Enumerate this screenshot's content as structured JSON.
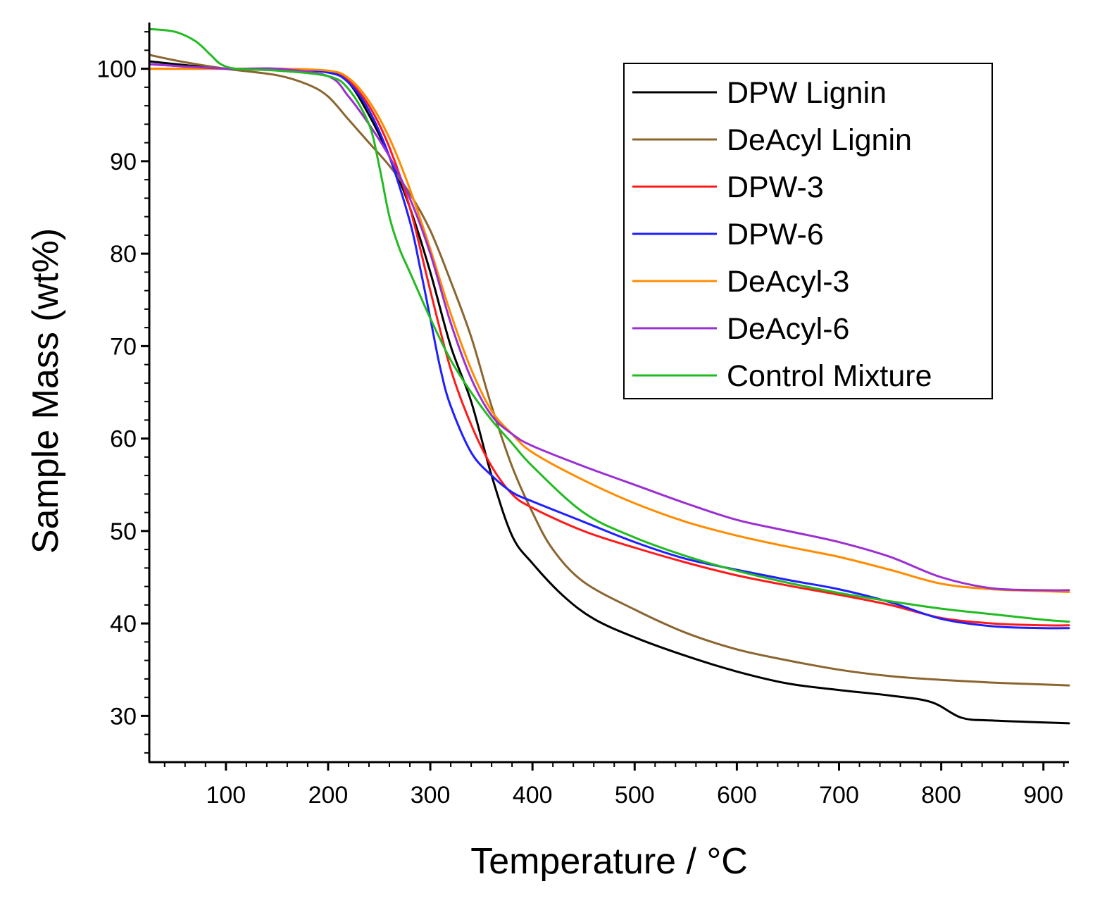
{
  "chart_data": {
    "type": "line",
    "title": "",
    "xlabel": "Temperature / °C",
    "ylabel": "Sample Mass (wt%)",
    "xlim": [
      25,
      925
    ],
    "ylim": [
      25,
      105
    ],
    "xticks": [
      100,
      200,
      300,
      400,
      500,
      600,
      700,
      800,
      900
    ],
    "yticks": [
      30,
      40,
      50,
      60,
      70,
      80,
      90,
      100
    ],
    "xtick_labels": [
      "100",
      "200",
      "300",
      "400",
      "500",
      "600",
      "700",
      "800",
      "900"
    ],
    "ytick_labels": [
      "30",
      "40",
      "50",
      "60",
      "70",
      "80",
      "90",
      "100"
    ],
    "legend_position": "top-right",
    "grid": false,
    "series": [
      {
        "name": "DPW Lignin",
        "color": "#000000",
        "x": [
          25,
          100,
          150,
          200,
          220,
          240,
          260,
          280,
          300,
          320,
          340,
          360,
          380,
          400,
          430,
          460,
          500,
          550,
          600,
          650,
          700,
          750,
          790,
          820,
          850,
          900,
          925
        ],
        "y": [
          100.8,
          100.0,
          100.0,
          99.6,
          98.5,
          95.0,
          90.5,
          85.0,
          78.0,
          70.0,
          64.0,
          56.0,
          49.5,
          46.5,
          43.0,
          40.5,
          38.5,
          36.5,
          34.8,
          33.5,
          32.8,
          32.2,
          31.5,
          29.8,
          29.5,
          29.3,
          29.2
        ]
      },
      {
        "name": "DeAcyl Lignin",
        "color": "#8B6530",
        "x": [
          25,
          60,
          100,
          150,
          180,
          200,
          220,
          240,
          260,
          280,
          300,
          320,
          340,
          360,
          380,
          400,
          420,
          450,
          500,
          550,
          600,
          650,
          700,
          750,
          800,
          850,
          900,
          925
        ],
        "y": [
          101.5,
          100.7,
          100.0,
          99.3,
          98.3,
          97.0,
          94.5,
          92.0,
          89.5,
          86.5,
          82.5,
          77.0,
          71.0,
          63.5,
          57.0,
          52.0,
          48.0,
          44.5,
          41.5,
          39.0,
          37.2,
          36.0,
          35.0,
          34.3,
          33.9,
          33.6,
          33.4,
          33.3
        ]
      },
      {
        "name": "DPW-3",
        "color": "#FF1A1A",
        "x": [
          25,
          100,
          150,
          200,
          220,
          240,
          260,
          280,
          300,
          320,
          340,
          360,
          380,
          400,
          450,
          500,
          550,
          600,
          650,
          700,
          750,
          800,
          850,
          900,
          925
        ],
        "y": [
          100.0,
          100.0,
          100.0,
          99.7,
          98.7,
          96.0,
          91.5,
          85.0,
          76.0,
          67.5,
          61.5,
          57.0,
          54.0,
          52.5,
          50.0,
          48.2,
          46.6,
          45.2,
          44.1,
          43.1,
          42.0,
          40.6,
          40.0,
          39.8,
          39.8
        ]
      },
      {
        "name": "DPW-6",
        "color": "#1F1FFF",
        "x": [
          25,
          100,
          150,
          200,
          220,
          240,
          260,
          280,
          290,
          300,
          310,
          320,
          340,
          360,
          380,
          400,
          450,
          500,
          550,
          600,
          650,
          700,
          750,
          800,
          850,
          900,
          925
        ],
        "y": [
          100.5,
          100.0,
          100.0,
          99.6,
          98.5,
          95.5,
          90.5,
          83.5,
          78.5,
          73.0,
          67.5,
          63.5,
          58.5,
          56.0,
          54.2,
          53.2,
          51.0,
          48.8,
          47.0,
          45.8,
          44.7,
          43.7,
          42.3,
          40.5,
          39.7,
          39.5,
          39.5
        ]
      },
      {
        "name": "DeAcyl-3",
        "color": "#FF8C00",
        "x": [
          25,
          100,
          150,
          200,
          220,
          240,
          260,
          280,
          300,
          320,
          340,
          360,
          380,
          400,
          450,
          500,
          550,
          600,
          650,
          700,
          750,
          800,
          850,
          900,
          925
        ],
        "y": [
          100.0,
          100.0,
          100.0,
          99.8,
          99.0,
          96.5,
          92.5,
          87.0,
          80.5,
          73.5,
          67.5,
          63.0,
          60.5,
          58.5,
          55.5,
          53.0,
          51.0,
          49.5,
          48.3,
          47.2,
          45.8,
          44.3,
          43.7,
          43.5,
          43.4
        ]
      },
      {
        "name": "DeAcyl-6",
        "color": "#9B30D0",
        "x": [
          25,
          100,
          150,
          200,
          220,
          240,
          260,
          280,
          300,
          320,
          340,
          360,
          380,
          400,
          450,
          500,
          550,
          600,
          650,
          700,
          750,
          800,
          850,
          900,
          925
        ],
        "y": [
          100.5,
          100.0,
          100.0,
          99.2,
          97.0,
          94.0,
          90.5,
          86.0,
          80.0,
          72.5,
          66.5,
          62.5,
          60.5,
          59.2,
          57.0,
          55.0,
          53.0,
          51.2,
          50.0,
          48.8,
          47.2,
          45.0,
          43.8,
          43.6,
          43.6
        ]
      },
      {
        "name": "Control Mixture",
        "color": "#22BB22",
        "x": [
          25,
          50,
          70,
          85,
          95,
          110,
          150,
          200,
          220,
          240,
          250,
          260,
          270,
          280,
          300,
          320,
          340,
          360,
          380,
          400,
          450,
          500,
          550,
          600,
          650,
          700,
          750,
          800,
          850,
          900,
          925
        ],
        "y": [
          104.3,
          104.0,
          103.0,
          101.5,
          100.5,
          100.0,
          99.8,
          99.2,
          97.8,
          94.0,
          89.5,
          84.0,
          80.5,
          78.0,
          73.0,
          68.5,
          65.0,
          62.0,
          59.5,
          57.0,
          52.0,
          49.3,
          47.3,
          45.7,
          44.4,
          43.3,
          42.4,
          41.6,
          41.0,
          40.4,
          40.2
        ]
      }
    ]
  }
}
